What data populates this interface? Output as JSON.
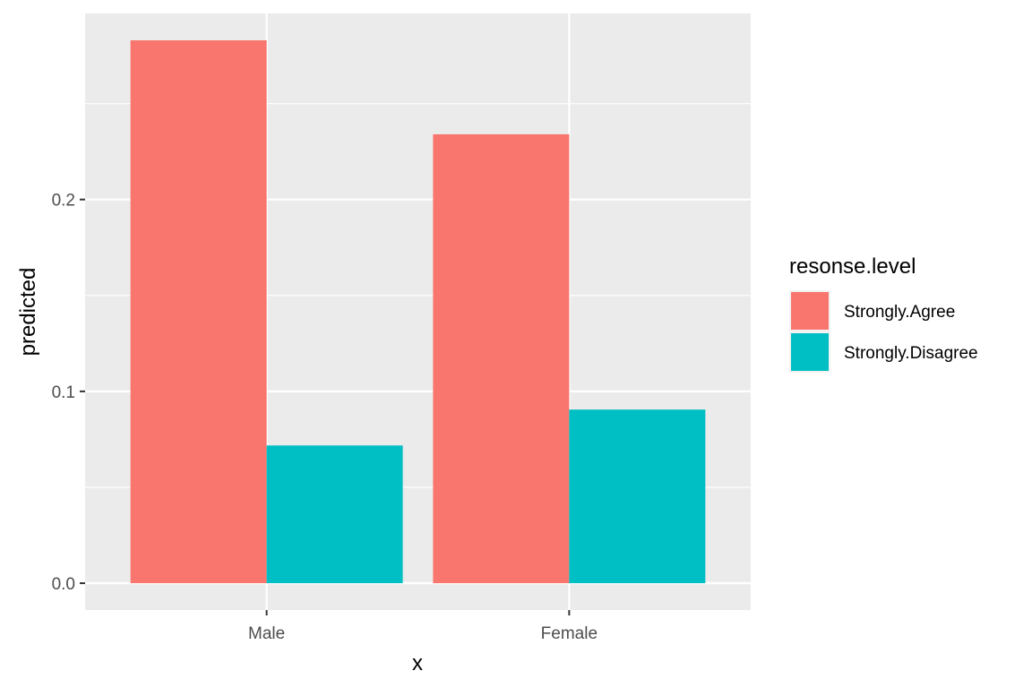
{
  "chart_data": {
    "type": "bar",
    "categories": [
      "Male",
      "Female"
    ],
    "series": [
      {
        "name": "Strongly.Agree",
        "values": [
          0.283,
          0.234
        ],
        "color": "#F8766D"
      },
      {
        "name": "Strongly.Disagree",
        "values": [
          0.0718,
          0.0905
        ],
        "color": "#00BFC4"
      }
    ],
    "xlabel": "x",
    "ylabel": "predicted",
    "ylim": [
      -0.014,
      0.297
    ],
    "yticks": [
      0.0,
      0.1,
      0.2
    ],
    "ytick_labels": [
      "0.0",
      "0.1",
      "0.2"
    ],
    "legend": {
      "title": "resonse.level",
      "placement": "right"
    },
    "grid": true,
    "panel_background": "#EBEBEB",
    "grid_color": "#FFFFFF"
  }
}
